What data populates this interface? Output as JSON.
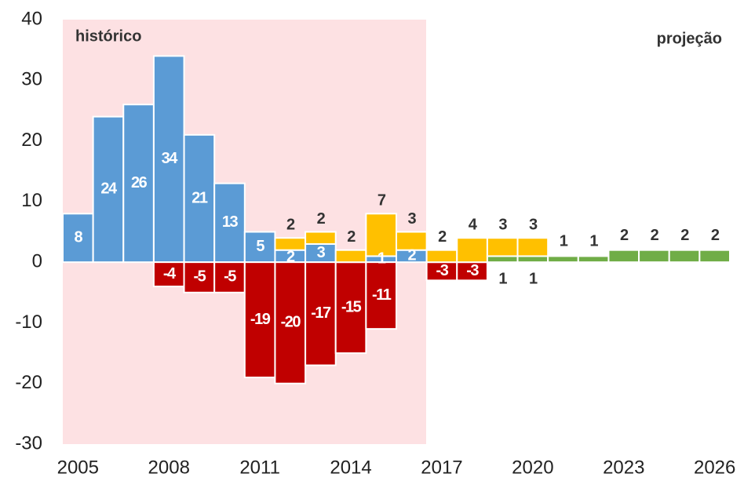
{
  "chart_data": {
    "type": "bar",
    "stacked": true,
    "categories": [
      "2005",
      null,
      null,
      "2008",
      null,
      null,
      "2011",
      null,
      null,
      "2014",
      null,
      null,
      "2017",
      null,
      null,
      "2020",
      null,
      null,
      "2023",
      null,
      null,
      "2026"
    ],
    "series": [
      {
        "color": "#5b9bd5",
        "values": [
          8,
          24,
          26,
          34,
          21,
          13,
          5,
          2,
          3,
          null,
          1,
          2,
          null,
          null,
          null,
          null,
          null,
          null,
          null,
          null,
          null,
          null
        ]
      },
      {
        "color": "#c00000",
        "values": [
          null,
          null,
          null,
          -4,
          -5,
          -5,
          -19,
          -20,
          -17,
          -15,
          -11,
          null,
          -3,
          -3,
          null,
          null,
          null,
          null,
          null,
          null,
          null,
          null
        ]
      },
      {
        "color": "#70ad47",
        "values": [
          null,
          null,
          null,
          null,
          null,
          null,
          null,
          null,
          null,
          null,
          null,
          null,
          null,
          null,
          1,
          1,
          1,
          1,
          2,
          2,
          2,
          2
        ]
      },
      {
        "color": "#ffc000",
        "values": [
          null,
          null,
          null,
          null,
          null,
          null,
          null,
          2,
          2,
          2,
          7,
          3,
          2,
          4,
          3,
          3,
          null,
          null,
          null,
          null,
          null,
          null
        ]
      }
    ],
    "ylim": [
      -30,
      40
    ],
    "yticks": [
      -30,
      -20,
      -10,
      0,
      10,
      20,
      30,
      40
    ],
    "annotations": [
      "histórico",
      "projeção"
    ]
  }
}
